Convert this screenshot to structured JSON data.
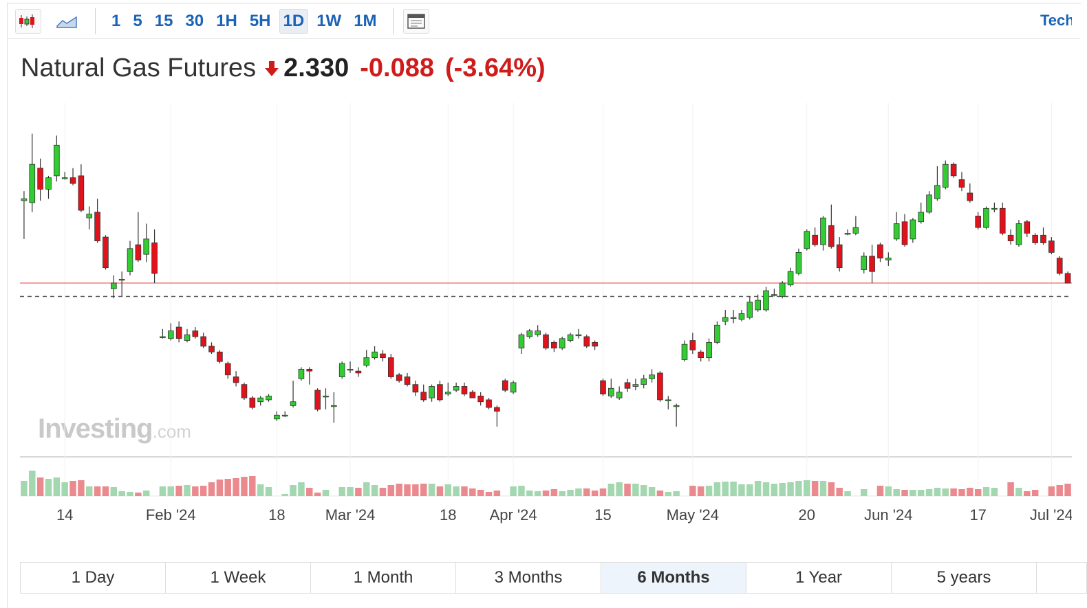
{
  "toolbar": {
    "intervals": [
      "1",
      "5",
      "15",
      "30",
      "1H",
      "5H",
      "1D",
      "1W",
      "1M"
    ],
    "active": "1D",
    "right_link": "Technical Chart"
  },
  "header": {
    "title": "Natural Gas Futures",
    "price": {
      "value": 2.33,
      "label": "2.330"
    },
    "change": {
      "value": -0.088,
      "label": "-0.088"
    },
    "change_pct": {
      "value": -3.64,
      "label": "(-3.64%)"
    }
  },
  "watermark": {
    "brand": "Investing",
    "suffix": ".com"
  },
  "ranges": {
    "items": [
      "1 Day",
      "1 Week",
      "1 Month",
      "3 Months",
      "6 Months",
      "1 Year",
      "5 years"
    ],
    "active": "6 Months"
  },
  "chart_data": {
    "type": "candlestick",
    "up_color": "#33cc33",
    "down_color": "#e0121b",
    "volume_up_color": "#a3d7b0",
    "volume_down_color": "#eb8a8e",
    "price_line_color": "#f08080",
    "ylim": [
      1.44,
      3.27
    ],
    "vlim": [
      0,
      45
    ],
    "ref_line": 2.26,
    "categories": [
      null,
      null,
      null,
      null,
      null,
      "14",
      null,
      null,
      null,
      null,
      null,
      null,
      null,
      null,
      null,
      null,
      null,
      null,
      "Feb '24",
      null,
      null,
      null,
      null,
      null,
      null,
      null,
      null,
      null,
      null,
      null,
      null,
      "18",
      null,
      null,
      null,
      null,
      null,
      null,
      null,
      null,
      "Mar '24",
      null,
      null,
      null,
      null,
      null,
      null,
      null,
      null,
      null,
      null,
      null,
      "18",
      null,
      null,
      null,
      null,
      null,
      null,
      null,
      "Apr '24",
      null,
      null,
      null,
      null,
      null,
      null,
      null,
      null,
      null,
      null,
      "15",
      null,
      null,
      null,
      null,
      null,
      null,
      null,
      null,
      null,
      null,
      "May '24",
      null,
      null,
      null,
      null,
      null,
      null,
      null,
      null,
      null,
      null,
      null,
      null,
      null,
      "20",
      null,
      null,
      null,
      null,
      null,
      null,
      null,
      null,
      null,
      "Jun '24",
      null,
      null,
      null,
      null,
      null,
      null,
      null,
      null,
      null,
      null,
      "17",
      null,
      null,
      null,
      null,
      null,
      null,
      null,
      null,
      "Jul '24",
      null,
      null
    ],
    "ohlc": [
      [
        2.76,
        2.81,
        2.56,
        2.77
      ],
      [
        2.75,
        3.11,
        2.7,
        2.95
      ],
      [
        2.93,
        2.98,
        2.76,
        2.82
      ],
      [
        2.82,
        2.89,
        2.77,
        2.88
      ],
      [
        2.89,
        3.1,
        2.86,
        3.05
      ],
      [
        2.88,
        2.91,
        2.87,
        2.88
      ],
      [
        2.88,
        2.93,
        2.84,
        2.85
      ],
      [
        2.89,
        2.95,
        2.7,
        2.71
      ],
      [
        2.67,
        2.73,
        2.61,
        2.69
      ],
      [
        2.7,
        2.77,
        2.54,
        2.55
      ],
      [
        2.57,
        2.58,
        2.4,
        2.41
      ],
      [
        2.3,
        2.37,
        2.25,
        2.33
      ],
      [
        2.35,
        2.39,
        2.26,
        2.35
      ],
      [
        2.39,
        2.55,
        2.37,
        2.51
      ],
      [
        2.53,
        2.7,
        2.44,
        2.45
      ],
      [
        2.48,
        2.64,
        2.44,
        2.56
      ],
      [
        2.54,
        2.61,
        2.33,
        2.38
      ],
      [
        2.05,
        2.09,
        2.04,
        2.05
      ],
      [
        2.04,
        2.12,
        2.03,
        2.08
      ],
      [
        2.1,
        2.13,
        2.02,
        2.04
      ],
      [
        2.03,
        2.09,
        2.02,
        2.06
      ],
      [
        2.08,
        2.1,
        2.04,
        2.05
      ],
      [
        2.05,
        2.07,
        1.99,
        2.0
      ],
      [
        2.0,
        2.02,
        1.96,
        1.97
      ],
      [
        1.97,
        1.98,
        1.91,
        1.92
      ],
      [
        1.91,
        1.92,
        1.83,
        1.85
      ],
      [
        1.84,
        1.87,
        1.79,
        1.81
      ],
      [
        1.8,
        1.81,
        1.72,
        1.73
      ],
      [
        1.73,
        1.74,
        1.67,
        1.68
      ],
      [
        1.71,
        1.74,
        1.69,
        1.73
      ],
      [
        1.72,
        1.75,
        1.71,
        1.74
      ],
      [
        1.62,
        1.66,
        1.61,
        1.64
      ],
      [
        1.64,
        1.66,
        1.63,
        1.64
      ],
      [
        1.69,
        1.82,
        1.68,
        1.71
      ],
      [
        1.83,
        1.89,
        1.82,
        1.88
      ],
      [
        1.88,
        1.89,
        1.8,
        1.87
      ],
      [
        1.77,
        1.78,
        1.66,
        1.67
      ],
      [
        1.74,
        1.78,
        1.67,
        1.74
      ],
      [
        1.69,
        1.76,
        1.6,
        1.69
      ],
      [
        1.84,
        1.92,
        1.83,
        1.91
      ],
      [
        1.88,
        1.92,
        1.86,
        1.88
      ],
      [
        1.87,
        1.89,
        1.84,
        1.86
      ],
      [
        1.9,
        1.98,
        1.89,
        1.94
      ],
      [
        1.94,
        2.0,
        1.93,
        1.97
      ],
      [
        1.96,
        1.98,
        1.92,
        1.94
      ],
      [
        1.94,
        1.96,
        1.83,
        1.84
      ],
      [
        1.85,
        1.86,
        1.81,
        1.82
      ],
      [
        1.84,
        1.86,
        1.79,
        1.8
      ],
      [
        1.8,
        1.82,
        1.74,
        1.76
      ],
      [
        1.76,
        1.8,
        1.71,
        1.72
      ],
      [
        1.73,
        1.8,
        1.71,
        1.79
      ],
      [
        1.8,
        1.82,
        1.71,
        1.72
      ],
      [
        1.75,
        1.81,
        1.74,
        1.76
      ],
      [
        1.77,
        1.81,
        1.76,
        1.79
      ],
      [
        1.79,
        1.81,
        1.74,
        1.75
      ],
      [
        1.76,
        1.77,
        1.73,
        1.73
      ],
      [
        1.74,
        1.76,
        1.69,
        1.71
      ],
      [
        1.72,
        1.73,
        1.67,
        1.68
      ],
      [
        1.68,
        1.69,
        1.58,
        1.66
      ],
      [
        1.82,
        1.83,
        1.76,
        1.77
      ],
      [
        1.76,
        1.82,
        1.75,
        1.81
      ],
      [
        1.99,
        2.07,
        1.96,
        2.06
      ],
      [
        2.05,
        2.09,
        2.04,
        2.08
      ],
      [
        2.06,
        2.11,
        2.05,
        2.08
      ],
      [
        2.06,
        2.07,
        1.98,
        1.99
      ],
      [
        2.02,
        2.03,
        1.97,
        1.99
      ],
      [
        1.99,
        2.05,
        1.98,
        2.04
      ],
      [
        2.03,
        2.07,
        2.02,
        2.06
      ],
      [
        2.06,
        2.09,
        2.04,
        2.06
      ],
      [
        2.05,
        2.06,
        1.99,
        2.0
      ],
      [
        2.02,
        2.03,
        1.98,
        2.0
      ],
      [
        1.82,
        1.83,
        1.74,
        1.75
      ],
      [
        1.74,
        1.83,
        1.73,
        1.78
      ],
      [
        1.73,
        1.79,
        1.72,
        1.76
      ],
      [
        1.81,
        1.83,
        1.76,
        1.78
      ],
      [
        1.79,
        1.83,
        1.77,
        1.8
      ],
      [
        1.8,
        1.85,
        1.78,
        1.83
      ],
      [
        1.83,
        1.88,
        1.81,
        1.85
      ],
      [
        1.86,
        1.87,
        1.71,
        1.72
      ],
      [
        1.72,
        1.74,
        1.67,
        1.72
      ],
      [
        1.69,
        1.7,
        1.58,
        1.69
      ],
      [
        1.93,
        2.03,
        1.92,
        2.01
      ],
      [
        2.03,
        2.07,
        1.96,
        1.98
      ],
      [
        1.97,
        1.98,
        1.92,
        1.94
      ],
      [
        1.94,
        2.04,
        1.92,
        2.02
      ],
      [
        2.02,
        2.13,
        2.01,
        2.11
      ],
      [
        2.13,
        2.19,
        2.11,
        2.15
      ],
      [
        2.15,
        2.19,
        2.12,
        2.15
      ],
      [
        2.14,
        2.19,
        2.13,
        2.17
      ],
      [
        2.15,
        2.26,
        2.14,
        2.23
      ],
      [
        2.19,
        2.27,
        2.18,
        2.24
      ],
      [
        2.19,
        2.31,
        2.18,
        2.29
      ],
      [
        2.27,
        2.3,
        2.26,
        2.27
      ],
      [
        2.26,
        2.34,
        2.25,
        2.33
      ],
      [
        2.32,
        2.41,
        2.31,
        2.39
      ],
      [
        2.38,
        2.51,
        2.37,
        2.49
      ],
      [
        2.51,
        2.61,
        2.5,
        2.6
      ],
      [
        2.58,
        2.62,
        2.52,
        2.53
      ],
      [
        2.53,
        2.68,
        2.5,
        2.67
      ],
      [
        2.63,
        2.74,
        2.51,
        2.52
      ],
      [
        2.53,
        2.57,
        2.39,
        2.41
      ],
      [
        2.59,
        2.61,
        2.58,
        2.59
      ],
      [
        2.59,
        2.68,
        2.58,
        2.62
      ],
      [
        2.4,
        2.49,
        2.38,
        2.47
      ],
      [
        2.47,
        2.53,
        2.33,
        2.39
      ],
      [
        2.53,
        2.54,
        2.44,
        2.46
      ],
      [
        2.45,
        2.49,
        2.42,
        2.46
      ],
      [
        2.56,
        2.7,
        2.55,
        2.64
      ],
      [
        2.65,
        2.69,
        2.52,
        2.53
      ],
      [
        2.56,
        2.67,
        2.54,
        2.66
      ],
      [
        2.65,
        2.75,
        2.64,
        2.7
      ],
      [
        2.7,
        2.81,
        2.69,
        2.79
      ],
      [
        2.77,
        2.94,
        2.76,
        2.84
      ],
      [
        2.83,
        2.97,
        2.82,
        2.95
      ],
      [
        2.95,
        2.96,
        2.88,
        2.89
      ],
      [
        2.87,
        2.91,
        2.81,
        2.83
      ],
      [
        2.8,
        2.85,
        2.75,
        2.76
      ],
      [
        2.68,
        2.7,
        2.61,
        2.62
      ],
      [
        2.62,
        2.73,
        2.61,
        2.72
      ],
      [
        2.72,
        2.75,
        2.7,
        2.72
      ],
      [
        2.72,
        2.75,
        2.58,
        2.59
      ],
      [
        2.58,
        2.61,
        2.53,
        2.55
      ],
      [
        2.53,
        2.66,
        2.52,
        2.64
      ],
      [
        2.65,
        2.66,
        2.57,
        2.59
      ],
      [
        2.58,
        2.59,
        2.53,
        2.54
      ],
      [
        2.58,
        2.62,
        2.53,
        2.54
      ],
      [
        2.55,
        2.57,
        2.48,
        2.49
      ],
      [
        2.46,
        2.47,
        2.37,
        2.38
      ],
      [
        2.38,
        2.39,
        2.33,
        2.33
      ]
    ],
    "volume": [
      22,
      37,
      27,
      25,
      27,
      20,
      22,
      23,
      14,
      14,
      14,
      13,
      7,
      6,
      5,
      8,
      0,
      14,
      14,
      15,
      16,
      14,
      15,
      20,
      24,
      25,
      26,
      28,
      29,
      17,
      13,
      0,
      3,
      16,
      20,
      12,
      5,
      9,
      0,
      13,
      13,
      12,
      20,
      16,
      12,
      16,
      18,
      17,
      17,
      18,
      18,
      14,
      17,
      14,
      14,
      11,
      9,
      6,
      8,
      0,
      14,
      15,
      8,
      7,
      8,
      10,
      7,
      9,
      11,
      11,
      8,
      11,
      18,
      20,
      18,
      18,
      16,
      13,
      8,
      6,
      7,
      0,
      15,
      14,
      15,
      20,
      21,
      21,
      17,
      17,
      22,
      20,
      18,
      19,
      20,
      22,
      23,
      22,
      22,
      20,
      12,
      7,
      0,
      10,
      0,
      15,
      14,
      10,
      9,
      9,
      9,
      10,
      12,
      11,
      11,
      10,
      12,
      10,
      13,
      12,
      0,
      20,
      12,
      7,
      9,
      0,
      14,
      16,
      18
    ]
  }
}
